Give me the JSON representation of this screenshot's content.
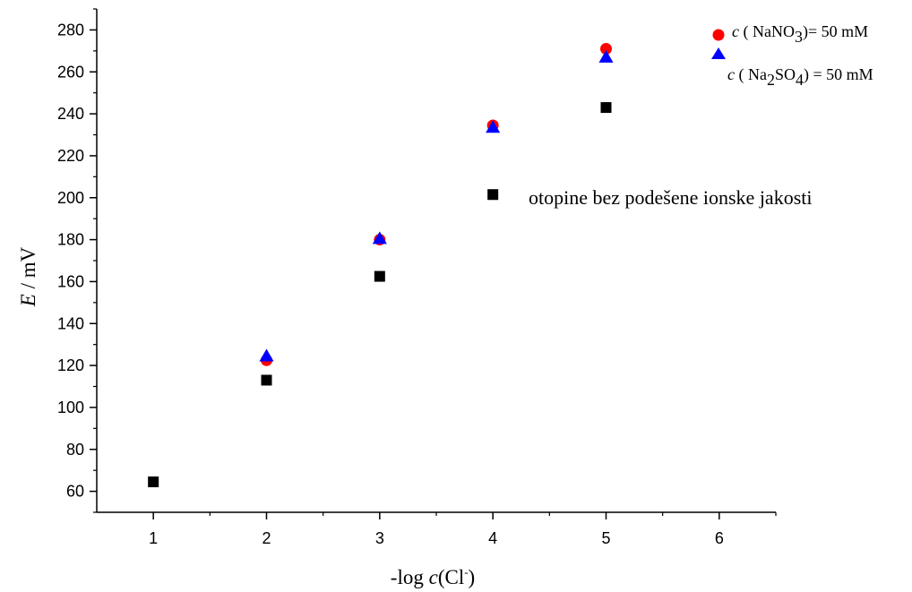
{
  "chart_data": {
    "type": "scatter",
    "xlabel": {
      "prefix": "-log ",
      "var": "c",
      "open": "(Cl",
      "sup": "-",
      "close": ")"
    },
    "ylabel": {
      "var": "E",
      "unit": " / mV"
    },
    "xlim": [
      0.5,
      6.5
    ],
    "ylim": [
      50,
      290
    ],
    "xticks": [
      1,
      2,
      3,
      4,
      5,
      6
    ],
    "yticks": [
      60,
      80,
      100,
      120,
      140,
      160,
      180,
      200,
      220,
      240,
      260,
      280
    ],
    "grid": false,
    "series": [
      {
        "key": "nano3",
        "marker": "circle",
        "color": "#ff0000",
        "label_parts": {
          "var": "c",
          "a": " ( NaNO",
          "sub": "3",
          "b": ")= 50 mM"
        },
        "x": [
          2,
          3,
          4,
          5
        ],
        "y": [
          122.5,
          180,
          234.5,
          271
        ]
      },
      {
        "key": "na2so4",
        "marker": "triangle",
        "color": "#0000ff",
        "label_parts": {
          "var": "c",
          "a": " ( Na",
          "sub1": "2",
          "b": "SO",
          "sub2": "4",
          "c": ") = 50 mM"
        },
        "x": [
          2,
          3,
          4,
          5
        ],
        "y": [
          124.5,
          180.5,
          233.5,
          267
        ]
      },
      {
        "key": "none",
        "marker": "square",
        "color": "#000000",
        "label": "otopine bez podešene ionske jakosti",
        "x": [
          1,
          2,
          3,
          4,
          5
        ],
        "y": [
          64.5,
          113,
          162.5,
          201.5,
          243
        ]
      }
    ]
  }
}
